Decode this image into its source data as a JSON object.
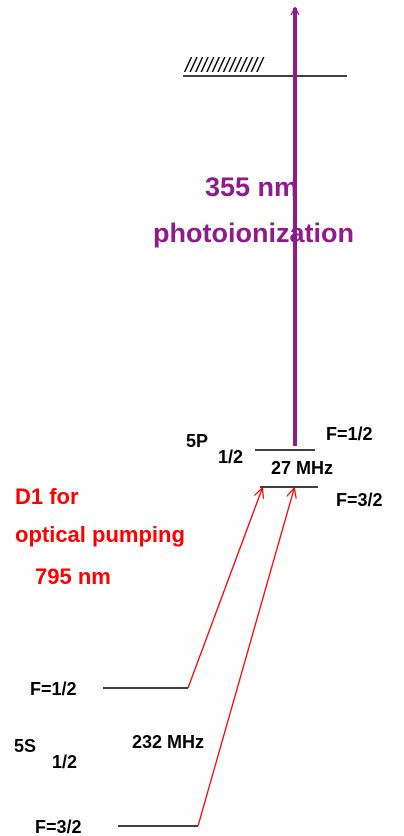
{
  "ionization": {
    "hatch": "//////////////",
    "wavelength": "355 nm",
    "process": "photoionization"
  },
  "excited_state": {
    "name": "5P",
    "subscript": "1/2",
    "upper_level": "F=1/2",
    "lower_level": "F=3/2",
    "splitting": "27 MHz"
  },
  "pump": {
    "line1": "D1 for",
    "line2": "optical pumping",
    "wavelength": "795 nm"
  },
  "ground_state": {
    "name": "5S",
    "subscript": "1/2",
    "upper_level": "F=1/2",
    "lower_level": "F=3/2",
    "splitting": "232 MHz"
  }
}
